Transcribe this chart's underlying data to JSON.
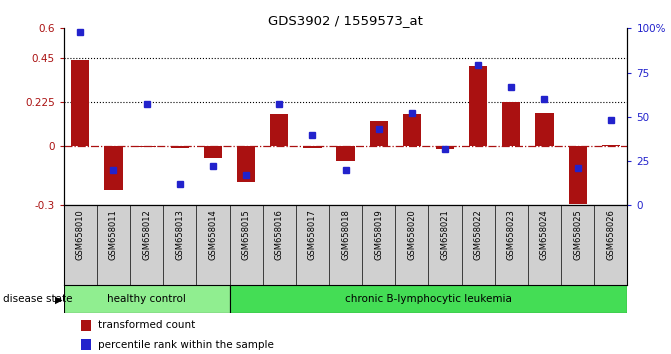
{
  "title": "GDS3902 / 1559573_at",
  "samples": [
    "GSM658010",
    "GSM658011",
    "GSM658012",
    "GSM658013",
    "GSM658014",
    "GSM658015",
    "GSM658016",
    "GSM658017",
    "GSM658018",
    "GSM658019",
    "GSM658020",
    "GSM658021",
    "GSM658022",
    "GSM658023",
    "GSM658024",
    "GSM658025",
    "GSM658026"
  ],
  "bar_values": [
    0.44,
    -0.22,
    -0.005,
    -0.01,
    -0.06,
    -0.18,
    0.165,
    -0.01,
    -0.075,
    0.13,
    0.165,
    -0.015,
    0.41,
    0.225,
    0.17,
    -0.295,
    0.005
  ],
  "dot_pct": [
    98,
    20,
    57,
    12,
    22,
    17,
    57,
    40,
    20,
    43,
    52,
    32,
    79,
    67,
    60,
    21,
    48
  ],
  "bar_color": "#aa1111",
  "dot_color": "#2222cc",
  "ylim_left": [
    -0.3,
    0.6
  ],
  "ylim_right": [
    0,
    100
  ],
  "yticks_left": [
    -0.3,
    0.0,
    0.225,
    0.45,
    0.6
  ],
  "ytick_labels_left": [
    "-0.3",
    "0",
    "0.225",
    "0.45",
    "0.6"
  ],
  "yticks_right": [
    0,
    25,
    50,
    75,
    100
  ],
  "ytick_labels_right": [
    "0",
    "25",
    "50",
    "75",
    "100%"
  ],
  "hline_dotted": [
    0.225,
    0.45
  ],
  "healthy_control_count": 5,
  "group1_label": "healthy control",
  "group2_label": "chronic B-lymphocytic leukemia",
  "disease_state_label": "disease state",
  "legend_bar_label": "transformed count",
  "legend_dot_label": "percentile rank within the sample",
  "group1_color": "#90EE90",
  "group2_color": "#44dd55",
  "label_bg_color": "#d0d0d0",
  "bg_color": "#ffffff"
}
